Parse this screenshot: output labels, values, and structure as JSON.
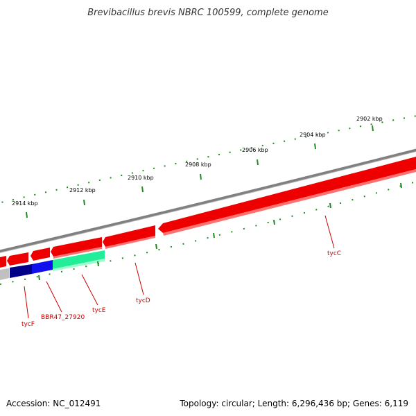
{
  "title": "Brevibacillus brevis NBRC 100599, complete genome",
  "accession": "Accession: NC_012491",
  "summary": "Topology: circular; Length: 6,296,436 bp; Genes: 6,119",
  "scale_labels": [
    "2902 kbp",
    "2904 kbp",
    "2906 kbp",
    "2908 kbp",
    "2910 kbp",
    "2912 kbp",
    "2914 kbp"
  ],
  "genes": [
    {
      "name": "tycC",
      "strand": "forward",
      "color": "#ee0000"
    },
    {
      "name": "tycD",
      "strand": "forward",
      "color": "#ee0000"
    },
    {
      "name": "tycE",
      "strand": "reverse",
      "color": "#22ee99"
    },
    {
      "name": "BBR47_27920",
      "strand": "reverse",
      "color": "#1111ee"
    },
    {
      "name": "tycF",
      "strand": "reverse",
      "color": "#000088"
    }
  ],
  "colors": {
    "backbone": "#808080",
    "forward_gene": "#ee0000",
    "ticks": "#228822",
    "label": "#cc0000"
  }
}
